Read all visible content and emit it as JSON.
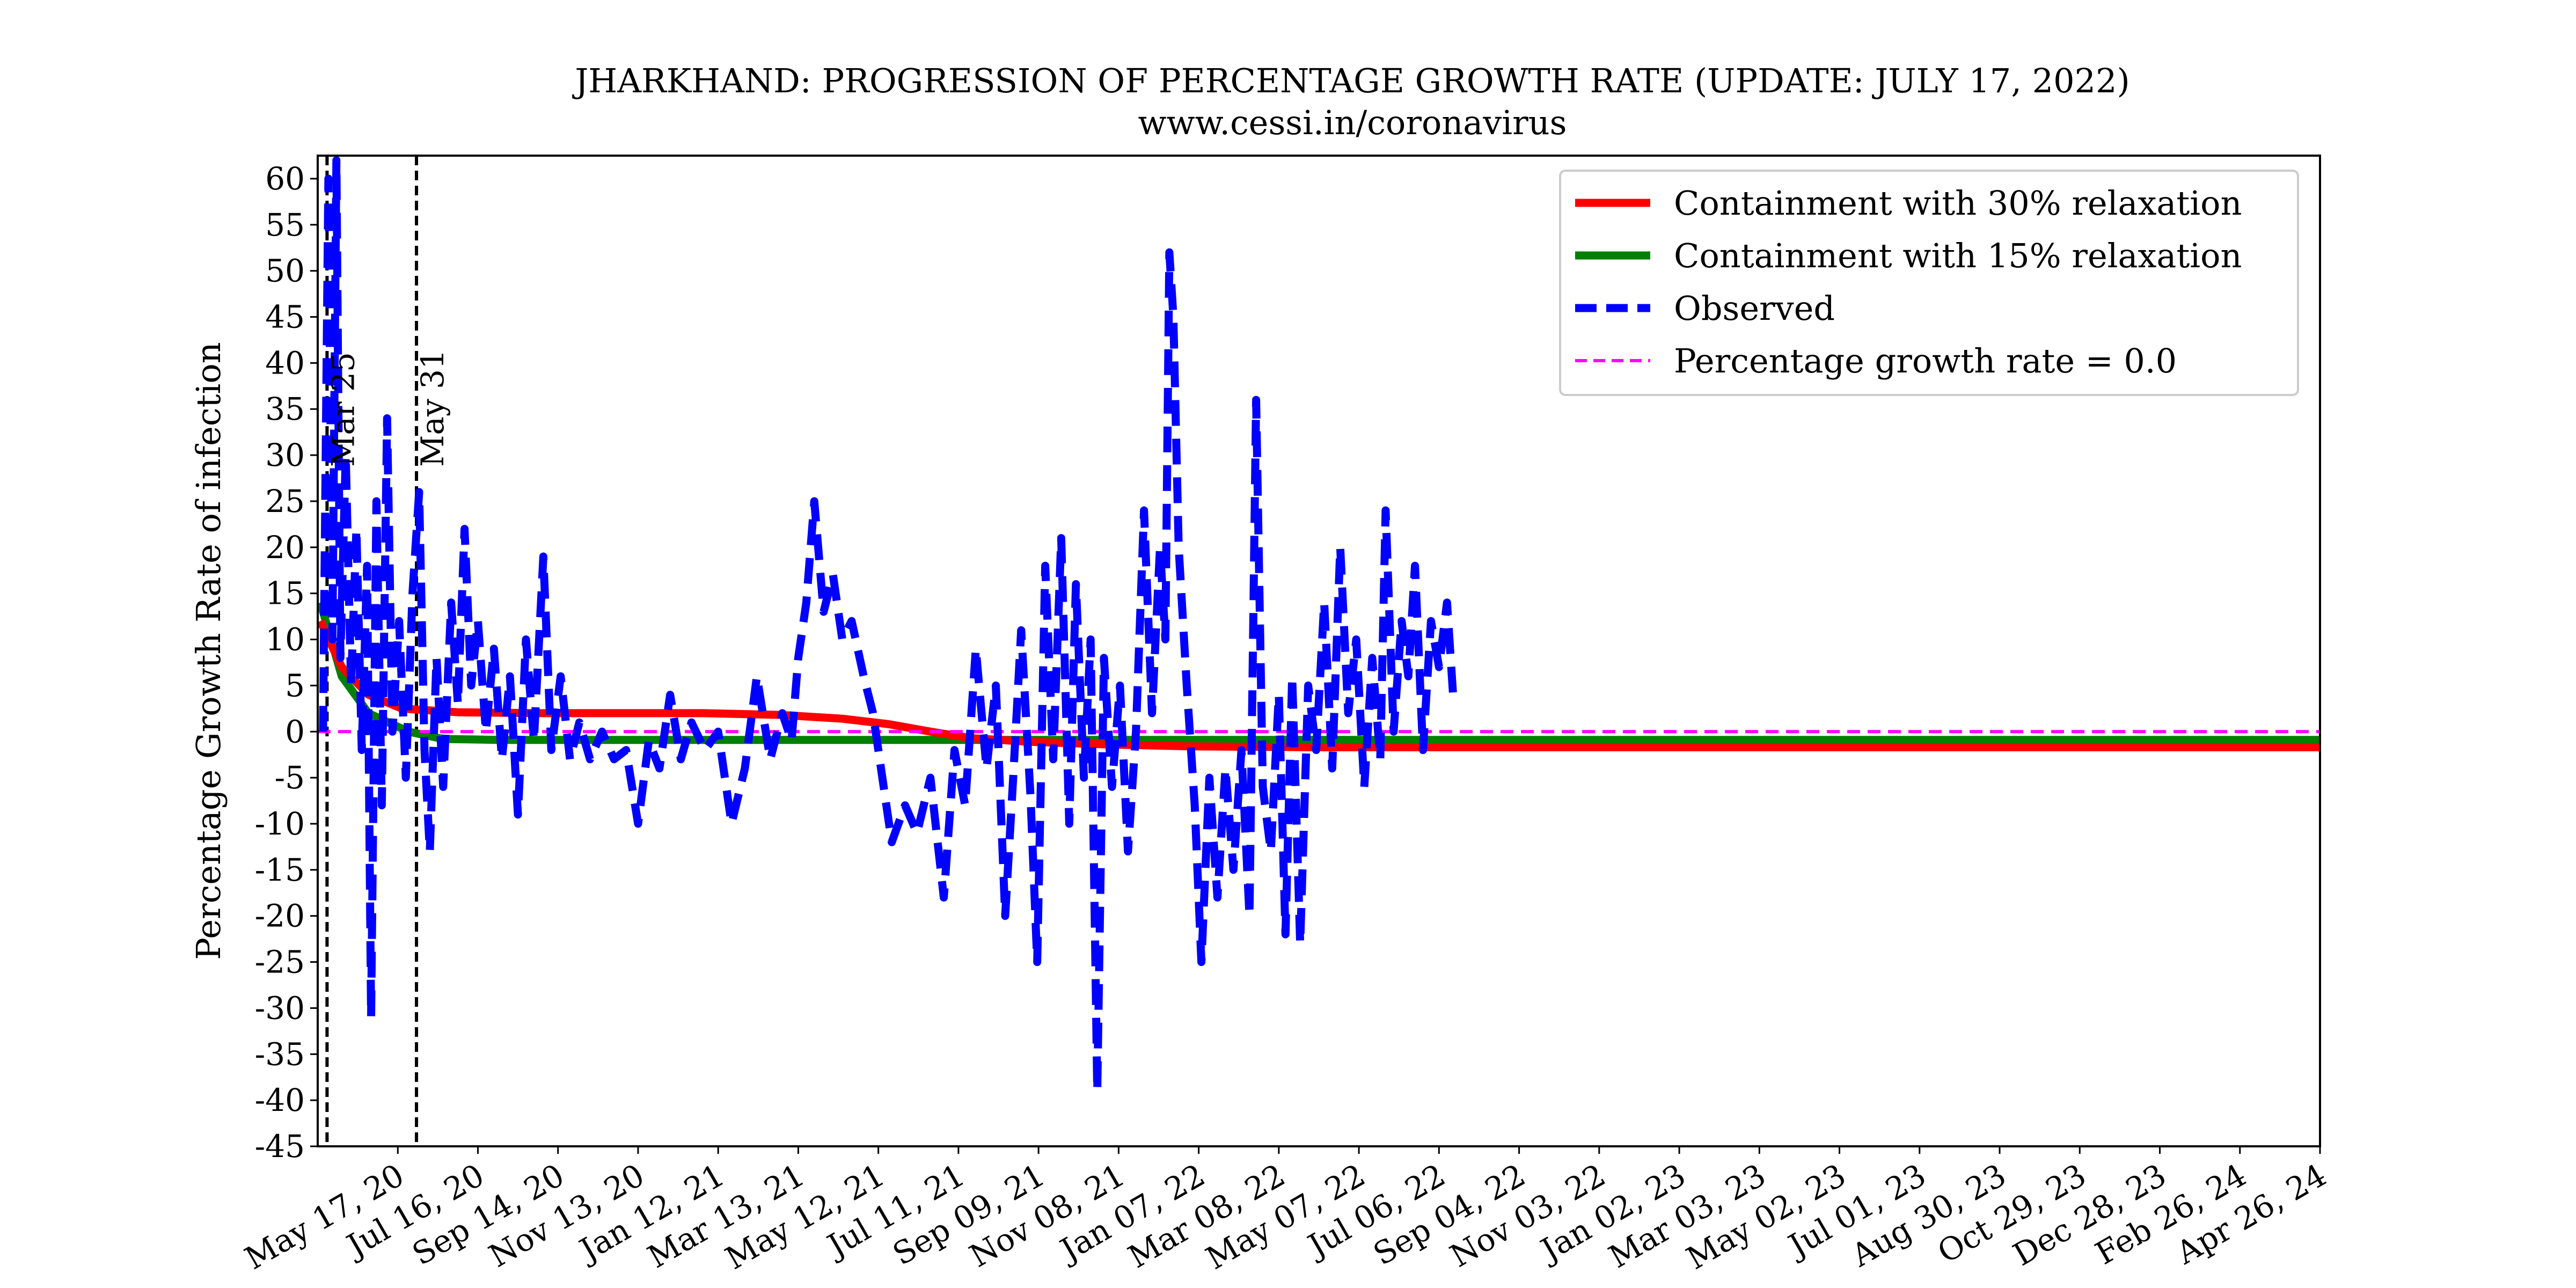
{
  "chart_data": {
    "type": "line",
    "title": "JHARKHAND: PROGRESSION OF PERCENTAGE GROWTH RATE (UPDATE: JULY 17, 2022)",
    "subtitle": "www.cessi.in/coronavirus",
    "xlabel": "",
    "ylabel": "Percentage Growth Rate of infection",
    "x_range": [
      "2020-03-18",
      "2024-04-26"
    ],
    "ylim": [
      -45,
      62.5
    ],
    "grid": false,
    "legend_position": "top-right",
    "x_ticks": [
      {
        "date": "2020-05-17",
        "label": "May 17, 20"
      },
      {
        "date": "2020-07-16",
        "label": "Jul 16, 20"
      },
      {
        "date": "2020-09-14",
        "label": "Sep 14, 20"
      },
      {
        "date": "2020-11-13",
        "label": "Nov 13, 20"
      },
      {
        "date": "2021-01-12",
        "label": "Jan 12, 21"
      },
      {
        "date": "2021-03-13",
        "label": "Mar 13, 21"
      },
      {
        "date": "2021-05-12",
        "label": "May 12, 21"
      },
      {
        "date": "2021-07-11",
        "label": "Jul 11, 21"
      },
      {
        "date": "2021-09-09",
        "label": "Sep 09, 21"
      },
      {
        "date": "2021-11-08",
        "label": "Nov 08, 21"
      },
      {
        "date": "2022-01-07",
        "label": "Jan 07, 22"
      },
      {
        "date": "2022-03-08",
        "label": "Mar 08, 22"
      },
      {
        "date": "2022-05-07",
        "label": "May 07, 22"
      },
      {
        "date": "2022-07-06",
        "label": "Jul 06, 22"
      },
      {
        "date": "2022-09-04",
        "label": "Sep 04, 22"
      },
      {
        "date": "2022-11-03",
        "label": "Nov 03, 22"
      },
      {
        "date": "2023-01-02",
        "label": "Jan 02, 23"
      },
      {
        "date": "2023-03-03",
        "label": "Mar 03, 23"
      },
      {
        "date": "2023-05-02",
        "label": "May 02, 23"
      },
      {
        "date": "2023-07-01",
        "label": "Jul 01, 23"
      },
      {
        "date": "2023-08-30",
        "label": "Aug 30, 23"
      },
      {
        "date": "2023-10-29",
        "label": "Oct 29, 23"
      },
      {
        "date": "2023-12-28",
        "label": "Dec 28, 23"
      },
      {
        "date": "2024-02-26",
        "label": "Feb 26, 24"
      },
      {
        "date": "2024-04-26",
        "label": "Apr 26, 24"
      }
    ],
    "y_ticks": [
      60,
      55,
      50,
      45,
      40,
      35,
      30,
      25,
      20,
      15,
      10,
      5,
      0,
      -5,
      -10,
      -15,
      -20,
      -25,
      -30,
      -35,
      -40,
      -45
    ],
    "vertical_lines": [
      {
        "date": "2020-03-25",
        "label": "Mar 25"
      },
      {
        "date": "2020-05-31",
        "label": "May 31"
      }
    ],
    "legend": [
      {
        "label": "Containment with 30% relaxation",
        "color": "#ff0000",
        "style": "solid"
      },
      {
        "label": "Containment with 15% relaxation",
        "color": "#008000",
        "style": "solid"
      },
      {
        "label": "Observed",
        "color": "#0000ff",
        "style": "dashed"
      },
      {
        "label": "Percentage growth rate = 0.0",
        "color": "#ff00ff",
        "style": "dashed"
      }
    ],
    "series": [
      {
        "name": "Containment with 30% relaxation",
        "color": "#ff0000",
        "style": "solid",
        "points": [
          [
            "2020-03-20",
            12
          ],
          [
            "2020-04-05",
            7
          ],
          [
            "2020-04-25",
            4
          ],
          [
            "2020-05-20",
            2.5
          ],
          [
            "2020-07-01",
            2.1
          ],
          [
            "2020-09-01",
            2.0
          ],
          [
            "2020-11-01",
            2.0
          ],
          [
            "2021-01-01",
            2.0
          ],
          [
            "2021-03-01",
            1.8
          ],
          [
            "2021-04-15",
            1.4
          ],
          [
            "2021-05-20",
            0.8
          ],
          [
            "2021-06-20",
            0.0
          ],
          [
            "2021-07-20",
            -0.7
          ],
          [
            "2021-09-01",
            -1.1
          ],
          [
            "2021-11-01",
            -1.4
          ],
          [
            "2022-01-01",
            -1.6
          ],
          [
            "2022-04-01",
            -1.7
          ],
          [
            "2022-09-01",
            -1.7
          ],
          [
            "2023-06-01",
            -1.7
          ],
          [
            "2024-04-26",
            -1.7
          ]
        ]
      },
      {
        "name": "Containment with 15% relaxation",
        "color": "#008000",
        "style": "solid",
        "points": [
          [
            "2020-03-20",
            14
          ],
          [
            "2020-04-05",
            6
          ],
          [
            "2020-04-25",
            2
          ],
          [
            "2020-05-25",
            0.0
          ],
          [
            "2020-06-20",
            -0.8
          ],
          [
            "2020-08-01",
            -0.9
          ],
          [
            "2021-01-01",
            -0.9
          ],
          [
            "2022-01-01",
            -0.9
          ],
          [
            "2023-01-01",
            -0.9
          ],
          [
            "2024-04-26",
            -0.9
          ]
        ]
      },
      {
        "name": "Observed",
        "color": "#0000ff",
        "style": "dashed",
        "points": [
          [
            "2020-03-22",
            0
          ],
          [
            "2020-03-26",
            60
          ],
          [
            "2020-03-29",
            10
          ],
          [
            "2020-04-01",
            62
          ],
          [
            "2020-04-04",
            8
          ],
          [
            "2020-04-08",
            30
          ],
          [
            "2020-04-12",
            5
          ],
          [
            "2020-04-16",
            22
          ],
          [
            "2020-04-20",
            -2
          ],
          [
            "2020-04-24",
            18
          ],
          [
            "2020-04-27",
            -31
          ],
          [
            "2020-05-01",
            25
          ],
          [
            "2020-05-05",
            -8
          ],
          [
            "2020-05-09",
            34
          ],
          [
            "2020-05-13",
            0
          ],
          [
            "2020-05-18",
            12
          ],
          [
            "2020-05-23",
            -5
          ],
          [
            "2020-05-28",
            15
          ],
          [
            "2020-06-02",
            26
          ],
          [
            "2020-06-06",
            -2
          ],
          [
            "2020-06-10",
            -13
          ],
          [
            "2020-06-15",
            8
          ],
          [
            "2020-06-20",
            -6
          ],
          [
            "2020-06-26",
            14
          ],
          [
            "2020-07-01",
            3
          ],
          [
            "2020-07-06",
            22
          ],
          [
            "2020-07-11",
            5
          ],
          [
            "2020-07-16",
            12
          ],
          [
            "2020-07-22",
            0
          ],
          [
            "2020-07-28",
            9
          ],
          [
            "2020-08-03",
            -3
          ],
          [
            "2020-08-09",
            6
          ],
          [
            "2020-08-15",
            -9
          ],
          [
            "2020-08-21",
            10
          ],
          [
            "2020-08-27",
            -1
          ],
          [
            "2020-09-03",
            19
          ],
          [
            "2020-09-09",
            -2
          ],
          [
            "2020-09-16",
            6
          ],
          [
            "2020-09-23",
            -3
          ],
          [
            "2020-09-30",
            1
          ],
          [
            "2020-10-08",
            -3
          ],
          [
            "2020-10-17",
            0
          ],
          [
            "2020-10-26",
            -3
          ],
          [
            "2020-11-04",
            -2
          ],
          [
            "2020-11-13",
            -10
          ],
          [
            "2020-11-21",
            -1
          ],
          [
            "2020-11-29",
            -4
          ],
          [
            "2020-12-07",
            4
          ],
          [
            "2020-12-15",
            -3
          ],
          [
            "2020-12-23",
            1
          ],
          [
            "2021-01-02",
            -2
          ],
          [
            "2021-01-12",
            0
          ],
          [
            "2021-01-22",
            -10
          ],
          [
            "2021-02-01",
            -4
          ],
          [
            "2021-02-10",
            6
          ],
          [
            "2021-02-20",
            -3
          ],
          [
            "2021-03-01",
            2
          ],
          [
            "2021-03-08",
            -1
          ],
          [
            "2021-03-13",
            8
          ],
          [
            "2021-03-19",
            14
          ],
          [
            "2021-03-25",
            25
          ],
          [
            "2021-04-01",
            13
          ],
          [
            "2021-04-08",
            17
          ],
          [
            "2021-04-15",
            10
          ],
          [
            "2021-04-22",
            12
          ],
          [
            "2021-05-01",
            6
          ],
          [
            "2021-05-08",
            2
          ],
          [
            "2021-05-15",
            -5
          ],
          [
            "2021-05-22",
            -12
          ],
          [
            "2021-06-01",
            -8
          ],
          [
            "2021-06-10",
            -11
          ],
          [
            "2021-06-20",
            -5
          ],
          [
            "2021-06-30",
            -18
          ],
          [
            "2021-07-08",
            -2
          ],
          [
            "2021-07-16",
            -8
          ],
          [
            "2021-07-24",
            9
          ],
          [
            "2021-08-01",
            -4
          ],
          [
            "2021-08-08",
            5
          ],
          [
            "2021-08-15",
            -20
          ],
          [
            "2021-08-21",
            -5
          ],
          [
            "2021-08-27",
            11
          ],
          [
            "2021-09-03",
            -7
          ],
          [
            "2021-09-08",
            -25
          ],
          [
            "2021-09-14",
            18
          ],
          [
            "2021-09-20",
            -3
          ],
          [
            "2021-09-26",
            21
          ],
          [
            "2021-10-02",
            -10
          ],
          [
            "2021-10-07",
            16
          ],
          [
            "2021-10-13",
            -5
          ],
          [
            "2021-10-18",
            10
          ],
          [
            "2021-10-23",
            -39
          ],
          [
            "2021-10-28",
            8
          ],
          [
            "2021-11-03",
            -6
          ],
          [
            "2021-11-09",
            5
          ],
          [
            "2021-11-15",
            -13
          ],
          [
            "2021-11-21",
            0
          ],
          [
            "2021-11-27",
            24
          ],
          [
            "2021-12-03",
            2
          ],
          [
            "2021-12-09",
            20
          ],
          [
            "2021-12-13",
            10
          ],
          [
            "2021-12-16",
            52
          ],
          [
            "2021-12-19",
            45
          ],
          [
            "2021-12-23",
            20
          ],
          [
            "2021-12-29",
            5
          ],
          [
            "2022-01-04",
            -8
          ],
          [
            "2022-01-09",
            -25
          ],
          [
            "2022-01-15",
            -5
          ],
          [
            "2022-01-21",
            -18
          ],
          [
            "2022-01-27",
            -4
          ],
          [
            "2022-02-02",
            -15
          ],
          [
            "2022-02-08",
            -2
          ],
          [
            "2022-02-14",
            -20
          ],
          [
            "2022-02-19",
            36
          ],
          [
            "2022-02-24",
            -6
          ],
          [
            "2022-03-02",
            -13
          ],
          [
            "2022-03-08",
            4
          ],
          [
            "2022-03-13",
            -22
          ],
          [
            "2022-03-18",
            6
          ],
          [
            "2022-03-24",
            -23
          ],
          [
            "2022-03-30",
            5
          ],
          [
            "2022-04-05",
            -2
          ],
          [
            "2022-04-11",
            14
          ],
          [
            "2022-04-17",
            -4
          ],
          [
            "2022-04-23",
            20
          ],
          [
            "2022-04-29",
            2
          ],
          [
            "2022-05-05",
            10
          ],
          [
            "2022-05-11",
            -6
          ],
          [
            "2022-05-17",
            8
          ],
          [
            "2022-05-23",
            -3
          ],
          [
            "2022-05-27",
            24
          ],
          [
            "2022-06-02",
            0
          ],
          [
            "2022-06-08",
            12
          ],
          [
            "2022-06-13",
            6
          ],
          [
            "2022-06-18",
            18
          ],
          [
            "2022-06-24",
            -2
          ],
          [
            "2022-06-30",
            12
          ],
          [
            "2022-07-06",
            7
          ],
          [
            "2022-07-12",
            14
          ],
          [
            "2022-07-17",
            3
          ]
        ]
      },
      {
        "name": "Percentage growth rate = 0.0",
        "color": "#ff00ff",
        "style": "dashed",
        "points": [
          [
            "2020-03-18",
            0
          ],
          [
            "2024-04-26",
            0
          ]
        ]
      }
    ]
  }
}
